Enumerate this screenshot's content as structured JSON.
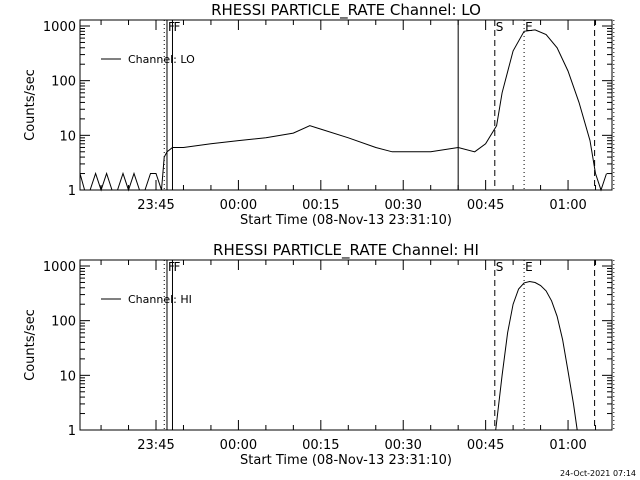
{
  "footer": {
    "timestamp": "24-Oct-2021 07:14"
  },
  "chart_data": [
    {
      "type": "line",
      "title": "RHESSI PARTICLE_RATE Channel: LO",
      "xlabel": "Start Time (08-Nov-13 23:31:10)",
      "ylabel": "Counts/sec",
      "yscale": "log",
      "ylim": [
        1,
        1000
      ],
      "xlim": [
        "23:31:10",
        "01:08:00"
      ],
      "xticks": [
        "23:45",
        "00:00",
        "00:15",
        "00:30",
        "00:45",
        "01:00"
      ],
      "yticks": [
        "1",
        "10",
        "100",
        "1000"
      ],
      "legend": {
        "entries": [
          "Channel: LO"
        ],
        "position": "top-left"
      },
      "markers": [
        {
          "label": "F",
          "time": "23:47:00",
          "style": "solid"
        },
        {
          "label": "F",
          "time": "23:48:00",
          "style": "solid"
        },
        {
          "label": "",
          "time": "23:46:30",
          "style": "dotted"
        },
        {
          "label": "",
          "time": "00:40:00",
          "style": "solid"
        },
        {
          "label": "S",
          "time": "00:46:40",
          "style": "dashed"
        },
        {
          "label": "E",
          "time": "00:52:00",
          "style": "dotted"
        },
        {
          "label": "",
          "time": "01:04:50",
          "style": "dashed"
        },
        {
          "label": "",
          "time": "01:08:20",
          "style": "dotted"
        }
      ],
      "series": [
        {
          "name": "Channel: LO",
          "x": [
            "23:31:10",
            "23:32:00",
            "23:33:00",
            "23:34:00",
            "23:35:00",
            "23:36:00",
            "23:37:00",
            "23:38:00",
            "23:39:00",
            "23:40:00",
            "23:41:00",
            "23:42:00",
            "23:43:00",
            "23:44:00",
            "23:45:00",
            "23:46:00",
            "23:46:30",
            "23:47:00",
            "23:48:00",
            "23:50:00",
            "23:55:00",
            "00:00:00",
            "00:05:00",
            "00:10:00",
            "00:13:00",
            "00:15:00",
            "00:20:00",
            "00:25:00",
            "00:28:00",
            "00:30:00",
            "00:35:00",
            "00:40:00",
            "00:43:00",
            "00:45:00",
            "00:47:00",
            "00:48:00",
            "00:50:00",
            "00:52:00",
            "00:54:00",
            "00:56:00",
            "00:58:00",
            "01:00:00",
            "01:02:00",
            "01:04:00",
            "01:05:00",
            "01:06:00",
            "01:07:00"
          ],
          "y": [
            2,
            1,
            1,
            2,
            1,
            2,
            1,
            1,
            2,
            1,
            2,
            1,
            1,
            2,
            2,
            1,
            4,
            5,
            6,
            6,
            7,
            8,
            9,
            11,
            15,
            13,
            9,
            6,
            5,
            5,
            5,
            6,
            5,
            7,
            15,
            60,
            350,
            800,
            850,
            700,
            400,
            150,
            40,
            8,
            2,
            1,
            2
          ]
        }
      ]
    },
    {
      "type": "line",
      "title": "RHESSI PARTICLE_RATE Channel: HI",
      "xlabel": "Start Time (08-Nov-13 23:31:10)",
      "ylabel": "Counts/sec",
      "yscale": "log",
      "ylim": [
        1,
        1000
      ],
      "xlim": [
        "23:31:10",
        "01:08:00"
      ],
      "xticks": [
        "23:45",
        "00:00",
        "00:15",
        "00:30",
        "00:45",
        "01:00"
      ],
      "yticks": [
        "1",
        "10",
        "100",
        "1000"
      ],
      "legend": {
        "entries": [
          "Channel: HI"
        ],
        "position": "top-left"
      },
      "markers": [
        {
          "label": "F",
          "time": "23:47:00",
          "style": "solid"
        },
        {
          "label": "F",
          "time": "23:48:00",
          "style": "solid"
        },
        {
          "label": "",
          "time": "23:46:30",
          "style": "dotted"
        },
        {
          "label": "S",
          "time": "00:46:40",
          "style": "dashed"
        },
        {
          "label": "E",
          "time": "00:52:00",
          "style": "dotted"
        },
        {
          "label": "",
          "time": "01:04:50",
          "style": "dashed"
        },
        {
          "label": "",
          "time": "01:08:20",
          "style": "dotted"
        }
      ],
      "series": [
        {
          "name": "Channel: HI",
          "x": [
            "00:46:50",
            "00:48:00",
            "00:49:00",
            "00:50:00",
            "00:51:00",
            "00:52:00",
            "00:53:00",
            "00:54:00",
            "00:55:00",
            "00:56:00",
            "00:57:00",
            "00:58:00",
            "00:59:00",
            "01:00:00",
            "01:01:00",
            "01:01:40"
          ],
          "y": [
            1,
            10,
            60,
            200,
            380,
            490,
            520,
            500,
            440,
            350,
            230,
            120,
            45,
            12,
            3,
            1
          ]
        }
      ]
    }
  ]
}
